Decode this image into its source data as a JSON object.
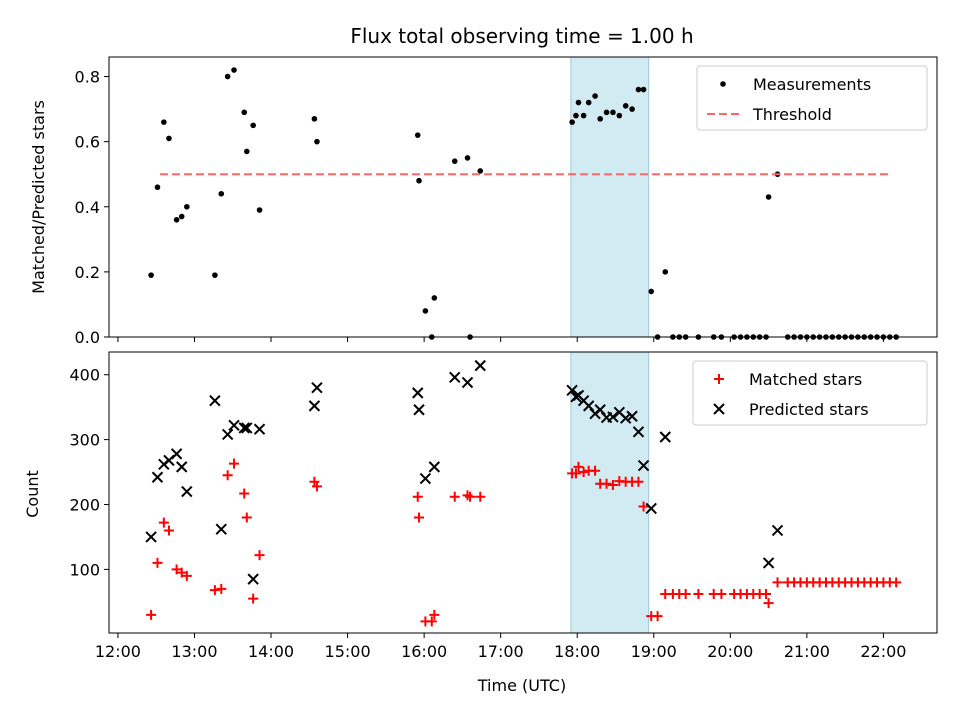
{
  "chart_data": [
    {
      "type": "scatter",
      "title": "Flux total observing time = 1.00 h",
      "xlabel": "",
      "ylabel": "Matched/Predicted stars",
      "xlim": [
        "11:53",
        "22:42"
      ],
      "ylim": [
        0,
        0.86
      ],
      "x_ticks": [
        "12:00",
        "13:00",
        "14:00",
        "15:00",
        "16:00",
        "17:00",
        "18:00",
        "19:00",
        "20:00",
        "21:00",
        "22:00"
      ],
      "y_ticks": [
        "0.0",
        "0.2",
        "0.4",
        "0.6",
        "0.8"
      ],
      "y_tick_values": [
        0,
        0.2,
        0.4,
        0.6,
        0.8
      ],
      "highlight_span": [
        "17:55",
        "18:56"
      ],
      "highlight_color": "#add8e6",
      "legend_position": "upper right",
      "series": [
        {
          "name": "Measurements",
          "marker": "dot",
          "color": "#000000",
          "points": [
            [
              "12:26",
              0.19
            ],
            [
              "12:31",
              0.46
            ],
            [
              "12:36",
              0.66
            ],
            [
              "12:40",
              0.61
            ],
            [
              "12:46",
              0.36
            ],
            [
              "12:50",
              0.37
            ],
            [
              "12:54",
              0.4
            ],
            [
              "13:16",
              0.19
            ],
            [
              "13:21",
              0.44
            ],
            [
              "13:26",
              0.8
            ],
            [
              "13:31",
              0.82
            ],
            [
              "13:39",
              0.69
            ],
            [
              "13:41",
              0.57
            ],
            [
              "13:46",
              0.65
            ],
            [
              "13:51",
              0.39
            ],
            [
              "14:34",
              0.67
            ],
            [
              "14:36",
              0.6
            ],
            [
              "15:55",
              0.62
            ],
            [
              "15:56",
              0.48
            ],
            [
              "16:01",
              0.08
            ],
            [
              "16:06",
              0.0
            ],
            [
              "16:08",
              0.12
            ],
            [
              "16:24",
              0.54
            ],
            [
              "16:34",
              0.55
            ],
            [
              "16:36",
              0.0
            ],
            [
              "16:44",
              0.51
            ],
            [
              "17:56",
              0.66
            ],
            [
              "17:59",
              0.68
            ],
            [
              "18:01",
              0.72
            ],
            [
              "18:05",
              0.68
            ],
            [
              "18:09",
              0.72
            ],
            [
              "18:14",
              0.74
            ],
            [
              "18:18",
              0.67
            ],
            [
              "18:23",
              0.69
            ],
            [
              "18:28",
              0.69
            ],
            [
              "18:33",
              0.68
            ],
            [
              "18:38",
              0.71
            ],
            [
              "18:43",
              0.7
            ],
            [
              "18:48",
              0.76
            ],
            [
              "18:52",
              0.76
            ],
            [
              "18:58",
              0.14
            ],
            [
              "19:03",
              0.0
            ],
            [
              "19:09",
              0.2
            ],
            [
              "19:15",
              0.0
            ],
            [
              "19:20",
              0.0
            ],
            [
              "19:25",
              0.0
            ],
            [
              "19:35",
              0.0
            ],
            [
              "19:47",
              0.0
            ],
            [
              "19:53",
              0.0
            ],
            [
              "20:03",
              0.0
            ],
            [
              "20:08",
              0.0
            ],
            [
              "20:13",
              0.0
            ],
            [
              "20:18",
              0.0
            ],
            [
              "20:23",
              0.0
            ],
            [
              "20:28",
              0.0
            ],
            [
              "20:30",
              0.43
            ],
            [
              "20:37",
              0.5
            ],
            [
              "20:45",
              0.0
            ],
            [
              "20:50",
              0.0
            ],
            [
              "20:55",
              0.0
            ],
            [
              "21:00",
              0.0
            ],
            [
              "21:05",
              0.0
            ],
            [
              "21:10",
              0.0
            ],
            [
              "21:15",
              0.0
            ],
            [
              "21:20",
              0.0
            ],
            [
              "21:25",
              0.0
            ],
            [
              "21:30",
              0.0
            ],
            [
              "21:35",
              0.0
            ],
            [
              "21:40",
              0.0
            ],
            [
              "21:45",
              0.0
            ],
            [
              "21:50",
              0.0
            ],
            [
              "21:55",
              0.0
            ],
            [
              "22:00",
              0.0
            ],
            [
              "22:05",
              0.0
            ],
            [
              "22:10",
              0.0
            ]
          ]
        },
        {
          "name": "Threshold",
          "marker": "dashed-line",
          "color": "#ff6666",
          "points": [
            [
              "12:33",
              0.5
            ],
            [
              "22:05",
              0.5
            ]
          ]
        }
      ]
    },
    {
      "type": "scatter",
      "title": "",
      "xlabel": "Time (UTC)",
      "ylabel": "Count",
      "xlim": [
        "11:53",
        "22:42"
      ],
      "ylim": [
        2,
        435
      ],
      "x_ticks": [
        "12:00",
        "13:00",
        "14:00",
        "15:00",
        "16:00",
        "17:00",
        "18:00",
        "19:00",
        "20:00",
        "21:00",
        "22:00"
      ],
      "y_ticks": [
        "100",
        "200",
        "300",
        "400"
      ],
      "y_tick_values": [
        100,
        200,
        300,
        400
      ],
      "highlight_span": [
        "17:55",
        "18:56"
      ],
      "highlight_color": "#add8e6",
      "legend_position": "upper right",
      "series": [
        {
          "name": "Matched stars",
          "marker": "plus",
          "color": "#ff0000",
          "points": [
            [
              "12:26",
              30
            ],
            [
              "12:31",
              110
            ],
            [
              "12:36",
              172
            ],
            [
              "12:40",
              160
            ],
            [
              "12:46",
              100
            ],
            [
              "12:50",
              95
            ],
            [
              "12:54",
              90
            ],
            [
              "13:16",
              68
            ],
            [
              "13:21",
              70
            ],
            [
              "13:26",
              245
            ],
            [
              "13:31",
              263
            ],
            [
              "13:39",
              217
            ],
            [
              "13:41",
              180
            ],
            [
              "13:46",
              55
            ],
            [
              "13:51",
              122
            ],
            [
              "14:34",
              235
            ],
            [
              "14:36",
              228
            ],
            [
              "15:55",
              212
            ],
            [
              "15:56",
              180
            ],
            [
              "16:01",
              20
            ],
            [
              "16:06",
              20
            ],
            [
              "16:08",
              30
            ],
            [
              "16:24",
              212
            ],
            [
              "16:34",
              214
            ],
            [
              "16:36",
              212
            ],
            [
              "16:44",
              212
            ],
            [
              "17:56",
              248
            ],
            [
              "17:59",
              248
            ],
            [
              "18:01",
              258
            ],
            [
              "18:05",
              250
            ],
            [
              "18:09",
              252
            ],
            [
              "18:14",
              252
            ],
            [
              "18:18",
              232
            ],
            [
              "18:23",
              232
            ],
            [
              "18:28",
              230
            ],
            [
              "18:33",
              236
            ],
            [
              "18:38",
              235
            ],
            [
              "18:43",
              235
            ],
            [
              "18:48",
              235
            ],
            [
              "18:52",
              197
            ],
            [
              "18:58",
              28
            ],
            [
              "19:03",
              28
            ],
            [
              "19:09",
              62
            ],
            [
              "19:15",
              62
            ],
            [
              "19:20",
              62
            ],
            [
              "19:25",
              62
            ],
            [
              "19:35",
              62
            ],
            [
              "19:47",
              62
            ],
            [
              "19:53",
              62
            ],
            [
              "20:03",
              62
            ],
            [
              "20:08",
              62
            ],
            [
              "20:13",
              62
            ],
            [
              "20:18",
              62
            ],
            [
              "20:23",
              62
            ],
            [
              "20:28",
              62
            ],
            [
              "20:30",
              48
            ],
            [
              "20:37",
              80
            ],
            [
              "20:45",
              80
            ],
            [
              "20:50",
              80
            ],
            [
              "20:55",
              80
            ],
            [
              "21:00",
              80
            ],
            [
              "21:05",
              80
            ],
            [
              "21:10",
              80
            ],
            [
              "21:15",
              80
            ],
            [
              "21:20",
              80
            ],
            [
              "21:25",
              80
            ],
            [
              "21:30",
              80
            ],
            [
              "21:35",
              80
            ],
            [
              "21:40",
              80
            ],
            [
              "21:45",
              80
            ],
            [
              "21:50",
              80
            ],
            [
              "21:55",
              80
            ],
            [
              "22:00",
              80
            ],
            [
              "22:05",
              80
            ],
            [
              "22:10",
              80
            ]
          ]
        },
        {
          "name": "Predicted stars",
          "marker": "x",
          "color": "#000000",
          "points": [
            [
              "12:26",
              150
            ],
            [
              "12:31",
              242
            ],
            [
              "12:36",
              262
            ],
            [
              "12:40",
              268
            ],
            [
              "12:46",
              278
            ],
            [
              "12:50",
              258
            ],
            [
              "12:54",
              220
            ],
            [
              "13:16",
              360
            ],
            [
              "13:21",
              162
            ],
            [
              "13:26",
              308
            ],
            [
              "13:31",
              322
            ],
            [
              "13:39",
              318
            ],
            [
              "13:41",
              318
            ],
            [
              "13:46",
              85
            ],
            [
              "13:51",
              316
            ],
            [
              "14:34",
              352
            ],
            [
              "14:36",
              380
            ],
            [
              "15:55",
              372
            ],
            [
              "15:56",
              346
            ],
            [
              "16:01",
              240
            ],
            [
              "16:08",
              258
            ],
            [
              "16:24",
              396
            ],
            [
              "16:34",
              388
            ],
            [
              "16:44",
              414
            ],
            [
              "17:56",
              376
            ],
            [
              "17:59",
              366
            ],
            [
              "18:01",
              368
            ],
            [
              "18:05",
              360
            ],
            [
              "18:09",
              352
            ],
            [
              "18:14",
              340
            ],
            [
              "18:18",
              346
            ],
            [
              "18:23",
              334
            ],
            [
              "18:28",
              335
            ],
            [
              "18:33",
              342
            ],
            [
              "18:38",
              333
            ],
            [
              "18:43",
              336
            ],
            [
              "18:48",
              312
            ],
            [
              "18:52",
              260
            ],
            [
              "18:58",
              194
            ],
            [
              "19:09",
              304
            ],
            [
              "20:30",
              110
            ],
            [
              "20:37",
              160
            ]
          ]
        }
      ]
    }
  ]
}
